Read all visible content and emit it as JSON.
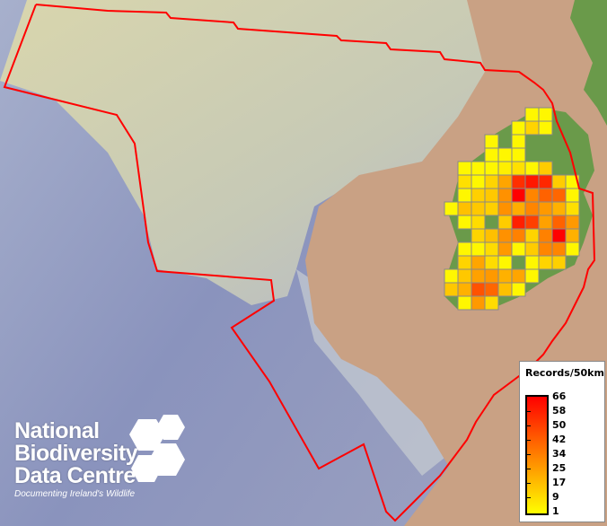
{
  "legend": {
    "title": "Records/50km",
    "labels": [
      "66",
      "58",
      "50",
      "42",
      "34",
      "25",
      "17",
      "9",
      "1"
    ],
    "min": 1,
    "max": 66,
    "colors": {
      "low": "#ffff00",
      "mid": "#ff8000",
      "high": "#ff0000"
    }
  },
  "logo": {
    "line1": "National",
    "line2": "Biodiversity",
    "line3": "Data Centre",
    "tagline": "Documenting Ireland's Wildlife"
  },
  "colors": {
    "boundary": "#ff0000",
    "grid_border": "#888888",
    "land": "#c9a184",
    "ireland": "#6a9a4a",
    "deep_sea": "#8a93b8",
    "shelf": "#d8d2a8"
  },
  "grid_records": [
    [
      null,
      null,
      null,
      null,
      null,
      null,
      3,
      3,
      null,
      null,
      null
    ],
    [
      null,
      null,
      null,
      null,
      null,
      3,
      12,
      3,
      null,
      null,
      null
    ],
    [
      null,
      null,
      null,
      3,
      null,
      3,
      null,
      null,
      null,
      null,
      null
    ],
    [
      null,
      null,
      null,
      3,
      3,
      3,
      null,
      null,
      null,
      null,
      null
    ],
    [
      null,
      3,
      3,
      3,
      5,
      9,
      3,
      14,
      null,
      null,
      null
    ],
    [
      null,
      9,
      3,
      12,
      24,
      54,
      60,
      56,
      14,
      3,
      null
    ],
    [
      null,
      3,
      13,
      15,
      29,
      66,
      32,
      41,
      40,
      3,
      null
    ],
    [
      3,
      17,
      15,
      13,
      29,
      22,
      32,
      27,
      21,
      9,
      null
    ],
    [
      null,
      3,
      10,
      null,
      14,
      58,
      50,
      25,
      41,
      27,
      null
    ],
    [
      null,
      null,
      12,
      17,
      29,
      33,
      12,
      33,
      66,
      21,
      null
    ],
    [
      null,
      3,
      3,
      10,
      27,
      3,
      14,
      32,
      32,
      3,
      null
    ],
    [
      null,
      12,
      24,
      10,
      3,
      null,
      3,
      12,
      13,
      null,
      null
    ],
    [
      3,
      15,
      25,
      27,
      21,
      24,
      3,
      null,
      null,
      null,
      null
    ],
    [
      15,
      21,
      45,
      40,
      17,
      3,
      null,
      null,
      null,
      null,
      null
    ],
    [
      null,
      3,
      27,
      10,
      null,
      null,
      null,
      null,
      null,
      null,
      null
    ]
  ]
}
